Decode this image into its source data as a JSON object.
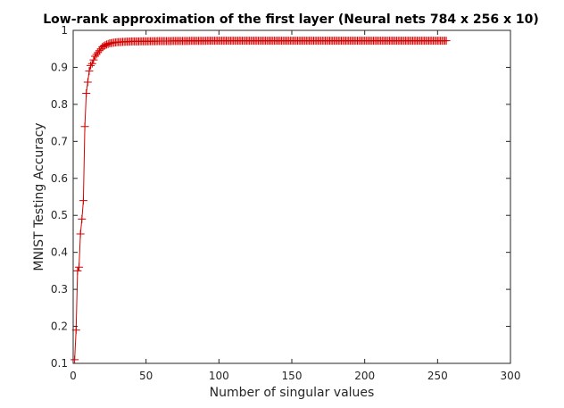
{
  "chart_data": {
    "type": "line",
    "title": "Low-rank approximation of the first layer (Neural nets 784 x 256 x 10)",
    "xlabel": "Number of singular values",
    "ylabel": "MNIST Testing Accuracy",
    "xlim": [
      0,
      300
    ],
    "ylim": [
      0.1,
      1
    ],
    "xticks": [
      0,
      50,
      100,
      150,
      200,
      250,
      300
    ],
    "xtick_labels": [
      "0",
      "50",
      "100",
      "150",
      "200",
      "250",
      "300"
    ],
    "yticks": [
      0.1,
      0.2,
      0.3,
      0.4,
      0.5,
      0.6,
      0.7,
      0.8,
      0.9,
      1
    ],
    "ytick_labels": [
      "0.1",
      "0.2",
      "0.3",
      "0.4",
      "0.5",
      "0.6",
      "0.7",
      "0.8",
      "0.9",
      "1"
    ],
    "grid": false,
    "marker": "+",
    "series_color": "#d40000",
    "series": [
      {
        "x_range": [
          1,
          256
        ],
        "anchors": [
          [
            1,
            0.11
          ],
          [
            2,
            0.19
          ],
          [
            3,
            0.35
          ],
          [
            4,
            0.36
          ],
          [
            5,
            0.45
          ],
          [
            6,
            0.49
          ],
          [
            7,
            0.54
          ],
          [
            8,
            0.74
          ],
          [
            9,
            0.83
          ],
          [
            10,
            0.86
          ],
          [
            11,
            0.89
          ],
          [
            12,
            0.905
          ],
          [
            13,
            0.91
          ],
          [
            14,
            0.92
          ],
          [
            15,
            0.93
          ],
          [
            16,
            0.935
          ],
          [
            17,
            0.94
          ],
          [
            18,
            0.945
          ],
          [
            19,
            0.95
          ],
          [
            20,
            0.955
          ],
          [
            22,
            0.96
          ],
          [
            25,
            0.965
          ],
          [
            30,
            0.968
          ],
          [
            40,
            0.97
          ],
          [
            60,
            0.971
          ],
          [
            100,
            0.972
          ],
          [
            256,
            0.972
          ]
        ]
      }
    ]
  }
}
